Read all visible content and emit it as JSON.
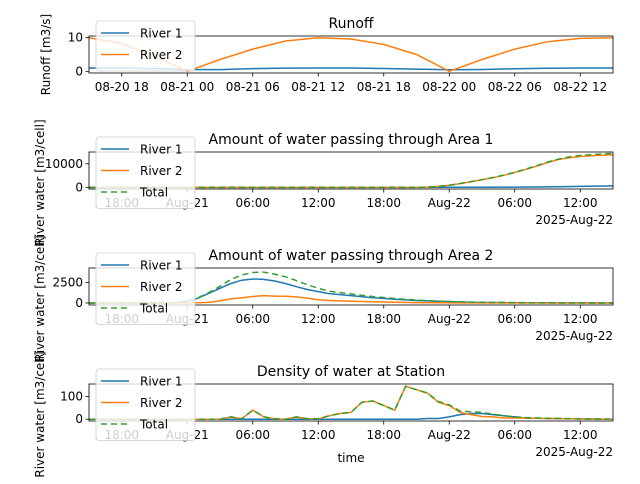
{
  "chart_data": [
    {
      "type": "line",
      "title": "Runoff",
      "ylabel": "Runoff  [m3/s]",
      "ylim": [
        -0.5,
        10.5
      ],
      "yticks": [
        0,
        10
      ],
      "xlim": [
        0,
        48
      ],
      "xticks": [
        {
          "x": 3,
          "label": "08-20 18"
        },
        {
          "x": 9,
          "label": "08-21 00"
        },
        {
          "x": 15,
          "label": "08-21 06"
        },
        {
          "x": 21,
          "label": "08-21 12"
        },
        {
          "x": 27,
          "label": "08-21 18"
        },
        {
          "x": 33,
          "label": "08-22 00"
        },
        {
          "x": 39,
          "label": "08-22 06"
        },
        {
          "x": 45,
          "label": "08-22 12"
        }
      ],
      "xtick_rotation": 0,
      "legend": "upper-left",
      "series": [
        {
          "name": "River 1",
          "color": "#1f77b4",
          "dash": "",
          "x": [
            0,
            3,
            6,
            9,
            12,
            15,
            18,
            21,
            24,
            27,
            30,
            33,
            36,
            39,
            42,
            45,
            48
          ],
          "y": [
            1.0,
            0.95,
            0.8,
            0.55,
            0.5,
            0.8,
            0.95,
            1.0,
            0.98,
            0.85,
            0.65,
            0.45,
            0.55,
            0.75,
            0.9,
            1.0,
            1.0
          ]
        },
        {
          "name": "River 2",
          "color": "#ff7f0e",
          "dash": "",
          "x": [
            0,
            3,
            6,
            9,
            12,
            15,
            18,
            21,
            24,
            27,
            30,
            33,
            36,
            39,
            42,
            45,
            48
          ],
          "y": [
            10.0,
            8.3,
            4.5,
            0.0,
            3.5,
            6.6,
            9.0,
            10.0,
            9.6,
            8.0,
            5.0,
            0.0,
            3.5,
            6.6,
            8.8,
            9.8,
            10.0
          ]
        }
      ]
    },
    {
      "type": "line",
      "title": "Amount of water passing through Area 1",
      "ylabel": "River water [m3/cell]",
      "ylim": [
        -700,
        15000
      ],
      "yticks": [
        0,
        10000
      ],
      "xlim": [
        0,
        48
      ],
      "xticks": [
        {
          "x": 3,
          "label": "18:00"
        },
        {
          "x": 9,
          "label": "Aug-21"
        },
        {
          "x": 15,
          "label": "06:00"
        },
        {
          "x": 21,
          "label": "12:00"
        },
        {
          "x": 27,
          "label": "18:00"
        },
        {
          "x": 33,
          "label": "Aug-22"
        },
        {
          "x": 39,
          "label": "06:00"
        },
        {
          "x": 45,
          "label": "12:00"
        }
      ],
      "offset_label": "2025-Aug-22",
      "legend": "upper-left",
      "series": [
        {
          "name": "River 1",
          "color": "#1f77b4",
          "dash": "",
          "x": [
            0,
            6,
            12,
            18,
            24,
            30,
            33,
            36,
            39,
            42,
            45,
            48
          ],
          "y": [
            0,
            0,
            0,
            0,
            0,
            0,
            20,
            50,
            100,
            200,
            400,
            600
          ]
        },
        {
          "name": "River 2",
          "color": "#ff7f0e",
          "dash": "",
          "x": [
            0,
            6,
            12,
            18,
            24,
            30,
            31,
            32,
            33,
            34,
            35,
            36,
            37,
            38,
            39,
            40,
            41,
            42,
            43,
            44,
            45,
            46,
            47,
            48
          ],
          "y": [
            0,
            0,
            0,
            0,
            0,
            0,
            100,
            400,
            900,
            1600,
            2400,
            3200,
            4100,
            5100,
            6300,
            7600,
            9000,
            10500,
            11800,
            12600,
            13100,
            13400,
            13600,
            13800
          ]
        },
        {
          "name": "Total",
          "color": "#2ca02c",
          "dash": "6,4",
          "x": [
            0,
            6,
            12,
            18,
            24,
            30,
            31,
            32,
            33,
            34,
            35,
            36,
            37,
            38,
            39,
            40,
            41,
            42,
            43,
            44,
            45,
            46,
            47,
            48
          ],
          "y": [
            0,
            0,
            0,
            0,
            0,
            0,
            110,
            420,
            930,
            1650,
            2460,
            3260,
            4180,
            5200,
            6400,
            7750,
            9200,
            10700,
            12000,
            12900,
            13500,
            13900,
            14200,
            14400
          ]
        }
      ]
    },
    {
      "type": "line",
      "title": "Amount of water passing through Area 2",
      "ylabel": "River water [m3/cell]",
      "ylim": [
        -250,
        4300
      ],
      "yticks": [
        0,
        2500
      ],
      "xlim": [
        0,
        48
      ],
      "xticks": [
        {
          "x": 3,
          "label": "18:00"
        },
        {
          "x": 9,
          "label": "Aug-21"
        },
        {
          "x": 15,
          "label": "06:00"
        },
        {
          "x": 21,
          "label": "12:00"
        },
        {
          "x": 27,
          "label": "18:00"
        },
        {
          "x": 33,
          "label": "Aug-22"
        },
        {
          "x": 39,
          "label": "06:00"
        },
        {
          "x": 45,
          "label": "12:00"
        }
      ],
      "offset_label": "2025-Aug-22",
      "legend": "upper-left",
      "series": [
        {
          "name": "River 1",
          "color": "#1f77b4",
          "dash": "",
          "x": [
            0,
            6,
            8,
            9,
            10,
            11,
            12,
            13,
            14,
            15,
            16,
            17,
            18,
            19,
            20,
            21,
            22,
            24,
            26,
            28,
            30,
            32,
            34,
            36,
            40,
            44,
            48
          ],
          "y": [
            0,
            0,
            50,
            200,
            600,
            1200,
            1800,
            2400,
            2800,
            2950,
            2900,
            2700,
            2400,
            2000,
            1650,
            1400,
            1150,
            900,
            650,
            450,
            300,
            200,
            120,
            70,
            30,
            10,
            0
          ]
        },
        {
          "name": "River 2",
          "color": "#ff7f0e",
          "dash": "",
          "x": [
            0,
            8,
            10,
            11,
            12,
            13,
            14,
            15,
            16,
            17,
            18,
            19,
            20,
            21,
            22,
            24,
            26,
            28,
            30,
            32,
            34,
            40,
            48
          ],
          "y": [
            0,
            0,
            20,
            100,
            250,
            500,
            650,
            800,
            900,
            850,
            820,
            750,
            600,
            400,
            300,
            200,
            150,
            100,
            50,
            20,
            10,
            0,
            0
          ]
        },
        {
          "name": "Total",
          "color": "#2ca02c",
          "dash": "6,4",
          "x": [
            0,
            6,
            8,
            9,
            10,
            11,
            12,
            13,
            14,
            15,
            16,
            17,
            18,
            19,
            20,
            21,
            22,
            24,
            26,
            28,
            30,
            32,
            34,
            36,
            40,
            44,
            48
          ],
          "y": [
            0,
            0,
            50,
            210,
            650,
            1300,
            2050,
            2900,
            3450,
            3750,
            3800,
            3550,
            3220,
            2750,
            2250,
            1800,
            1450,
            1100,
            800,
            550,
            350,
            220,
            130,
            70,
            30,
            10,
            0
          ]
        }
      ]
    },
    {
      "type": "line",
      "title": "Density of water at Station",
      "ylabel": "River water [m3/cell]",
      "xlabel": "time",
      "ylim": [
        -8,
        155
      ],
      "yticks": [
        0,
        100
      ],
      "xlim": [
        0,
        48
      ],
      "xticks": [
        {
          "x": 3,
          "label": "18:00"
        },
        {
          "x": 9,
          "label": "Aug-21"
        },
        {
          "x": 15,
          "label": "06:00"
        },
        {
          "x": 21,
          "label": "12:00"
        },
        {
          "x": 27,
          "label": "18:00"
        },
        {
          "x": 33,
          "label": "Aug-22"
        },
        {
          "x": 39,
          "label": "06:00"
        },
        {
          "x": 45,
          "label": "12:00"
        }
      ],
      "offset_label": "2025-Aug-22",
      "legend": "upper-left",
      "series": [
        {
          "name": "River 1",
          "color": "#1f77b4",
          "dash": "",
          "x": [
            0,
            6,
            12,
            18,
            24,
            30,
            31,
            32,
            33,
            34,
            35,
            36,
            37,
            38,
            39,
            40,
            42,
            44,
            46,
            48
          ],
          "y": [
            0,
            0,
            0,
            0,
            0,
            0,
            3,
            3,
            10,
            20,
            25,
            25,
            20,
            15,
            10,
            5,
            3,
            2,
            1,
            0
          ]
        },
        {
          "name": "River 2",
          "color": "#ff7f0e",
          "dash": "",
          "x": [
            0,
            12,
            13,
            14,
            15,
            16,
            17,
            18,
            19,
            20,
            21,
            22,
            23,
            24,
            25,
            26,
            27,
            28,
            29,
            30,
            31,
            32,
            33,
            34,
            35,
            36,
            37,
            38,
            39,
            40,
            42,
            44,
            46,
            48
          ],
          "y": [
            0,
            0,
            10,
            2,
            40,
            10,
            2,
            0,
            10,
            2,
            2,
            15,
            25,
            30,
            75,
            80,
            60,
            40,
            145,
            130,
            115,
            75,
            60,
            30,
            20,
            12,
            10,
            5,
            5,
            5,
            3,
            2,
            1,
            0
          ]
        },
        {
          "name": "Total",
          "color": "#2ca02c",
          "dash": "6,4",
          "x": [
            0,
            12,
            13,
            14,
            15,
            16,
            17,
            18,
            19,
            20,
            21,
            22,
            23,
            24,
            25,
            26,
            27,
            28,
            29,
            30,
            31,
            32,
            33,
            34,
            35,
            36,
            37,
            38,
            39,
            40,
            42,
            44,
            46,
            48
          ],
          "y": [
            0,
            0,
            10,
            2,
            40,
            10,
            2,
            0,
            10,
            2,
            2,
            15,
            25,
            30,
            75,
            80,
            60,
            40,
            145,
            130,
            115,
            78,
            63,
            35,
            33,
            30,
            22,
            16,
            10,
            7,
            4,
            2,
            1,
            0
          ]
        }
      ]
    }
  ]
}
